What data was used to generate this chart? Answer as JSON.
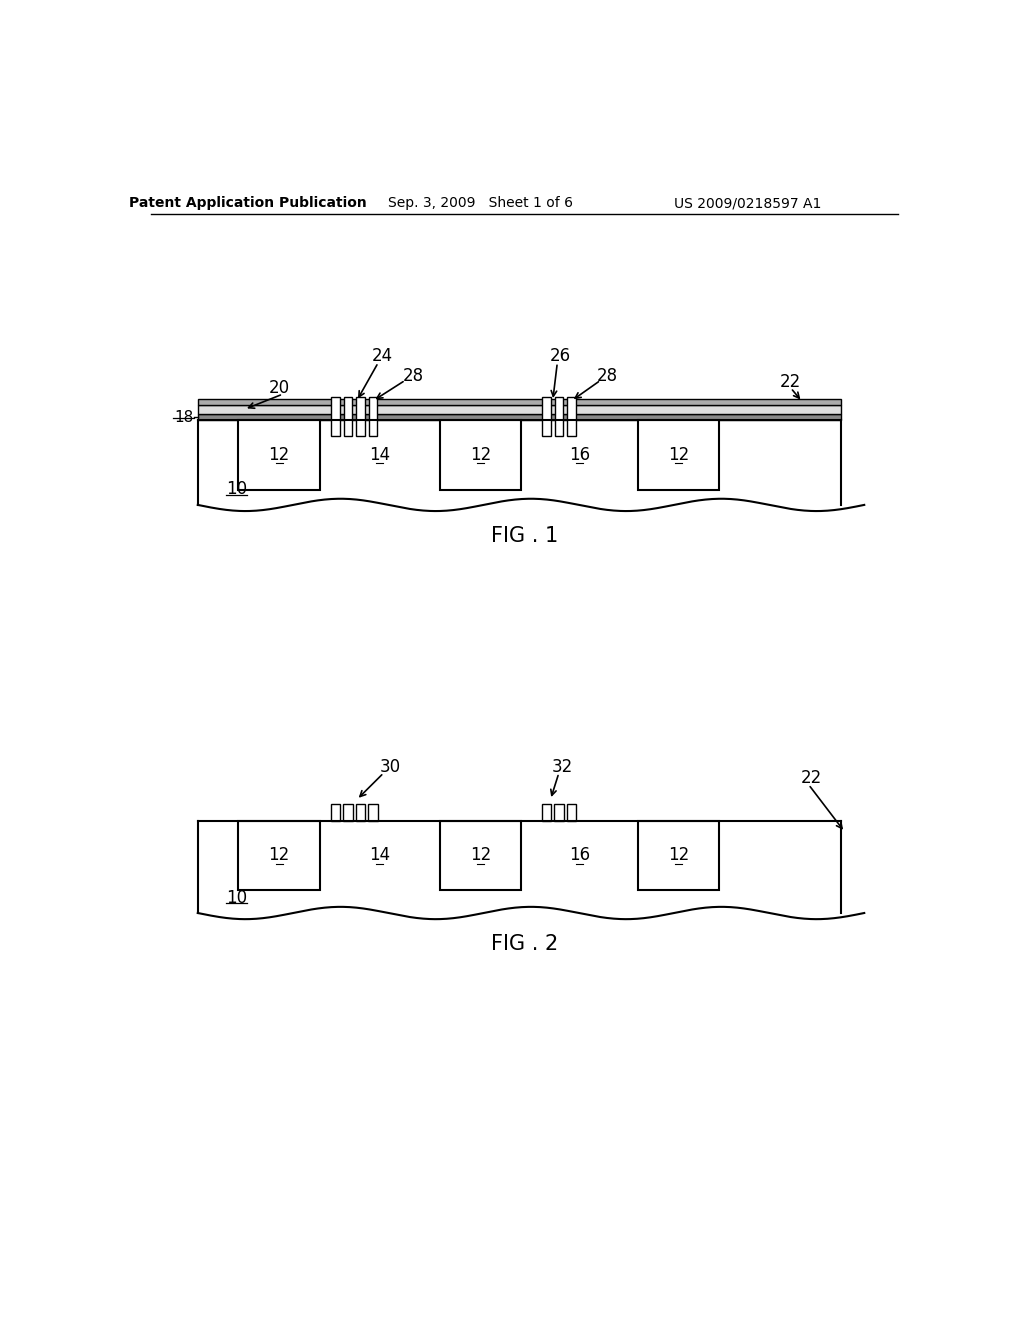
{
  "bg_color": "#ffffff",
  "line_color": "#000000",
  "header_left": "Patent Application Publication",
  "header_mid": "Sep. 3, 2009   Sheet 1 of 6",
  "header_right": "US 2009/0218597 A1"
}
